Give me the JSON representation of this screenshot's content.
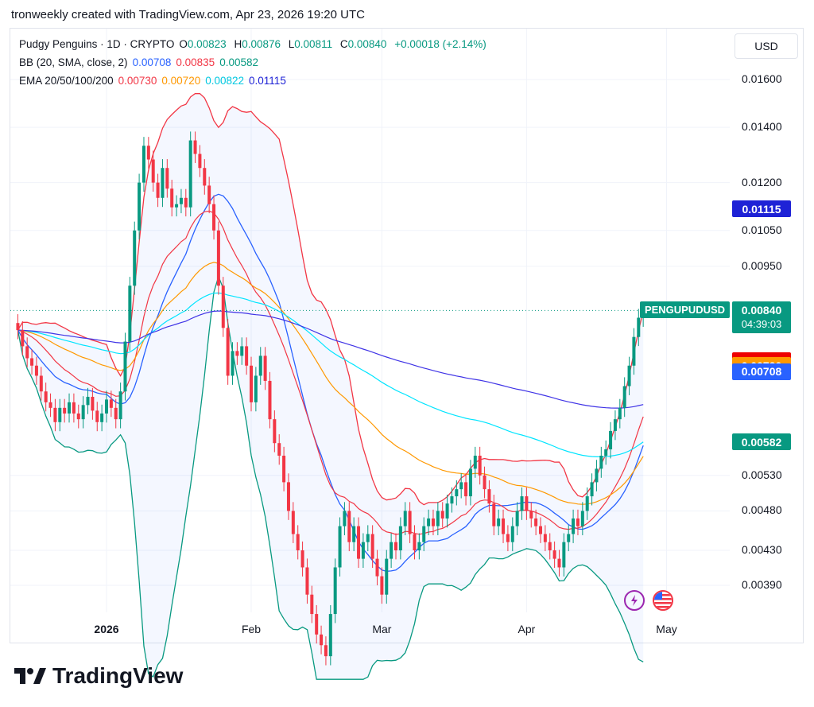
{
  "header": {
    "text": "tronweekly created with TradingView.com, Apr 23, 2026 19:20 UTC"
  },
  "legend": {
    "symbol": "Pudgy Penguins · 1D · CRYPTO",
    "o_label": "O",
    "o": "0.00823",
    "h_label": "H",
    "h": "0.00876",
    "l_label": "L",
    "l": "0.00811",
    "c_label": "C",
    "c": "0.00840",
    "change": "+0.00018 (+2.14%)",
    "bb_label": "BB (20, SMA, close, 2)",
    "bb_basis": "0.00708",
    "bb_upper": "0.00835",
    "bb_lower": "0.00582",
    "ema_label": "EMA 20/50/100/200",
    "ema20": "0.00730",
    "ema50": "0.00720",
    "ema100": "0.00822",
    "ema200": "0.01115"
  },
  "currency": "USD",
  "price_badge": {
    "symbol": "PENGUPUDUSD",
    "price": "0.00840",
    "countdown": "04:39:03"
  },
  "brand": "TradingView",
  "colors": {
    "up": "#089981",
    "down": "#f23645",
    "bb_upper": "#f23645",
    "bb_basis": "#2962ff",
    "bb_lower": "#089981",
    "ema20": "#f23645",
    "ema50": "#ff9800",
    "ema100": "#00e5ff",
    "ema200": "#3f33e6"
  },
  "chart_data": {
    "type": "candlestick",
    "title": "Pudgy Penguins · 1D · CRYPTO",
    "y_scale": "log",
    "y_ticks": [
      "0.01600",
      "0.01400",
      "0.01200",
      "0.01050",
      "0.00950",
      "0.00530",
      "0.00480",
      "0.00430",
      "0.00390"
    ],
    "x_ticks": [
      "2026",
      "Feb",
      "Mar",
      "Apr",
      "May"
    ],
    "last_values": [
      {
        "name": "EMA 200",
        "value": "0.01115",
        "color": "#1e22d6"
      },
      {
        "name": "BB upper",
        "value": "0.00835",
        "color": "#f23645"
      },
      {
        "name": "EMA 100",
        "value": "0.00822",
        "color": "#00e5ff"
      },
      {
        "name": "EMA 20",
        "value": "0.00730",
        "color": "#ee0000"
      },
      {
        "name": "EMA 50",
        "value": "0.00720",
        "color": "#ff9800"
      },
      {
        "name": "BB basis",
        "value": "0.00708",
        "color": "#2962ff"
      },
      {
        "name": "BB lower",
        "value": "0.00582",
        "color": "#089981"
      }
    ],
    "grid": true,
    "ohlc": {
      "start": "2025-12-13",
      "closes": [
        0.00795,
        0.0076,
        0.00735,
        0.0072,
        0.007,
        0.0067,
        0.0065,
        0.0064,
        0.00615,
        0.0064,
        0.0063,
        0.0065,
        0.0063,
        0.0062,
        0.00645,
        0.0066,
        0.00635,
        0.00615,
        0.0063,
        0.00655,
        0.0064,
        0.0062,
        0.0067,
        0.0077,
        0.009,
        0.0105,
        0.012,
        0.0133,
        0.0128,
        0.012,
        0.0115,
        0.0125,
        0.0118,
        0.0112,
        0.0113,
        0.0115,
        0.0112,
        0.0135,
        0.013,
        0.0125,
        0.0119,
        0.0113,
        0.0105,
        0.009,
        0.008,
        0.007,
        0.0075,
        0.0074,
        0.0076,
        0.0072,
        0.0065,
        0.007,
        0.0074,
        0.0069,
        0.0062,
        0.0058,
        0.0056,
        0.0052,
        0.0048,
        0.0045,
        0.0043,
        0.0041,
        0.0038,
        0.0036,
        0.0034,
        0.0033,
        0.0032,
        0.0036,
        0.0041,
        0.0046,
        0.0048,
        0.0044,
        0.0046,
        0.0042,
        0.0044,
        0.0045,
        0.0042,
        0.004,
        0.0038,
        0.0042,
        0.0044,
        0.0043,
        0.0046,
        0.0048,
        0.0045,
        0.0043,
        0.0044,
        0.0046,
        0.0047,
        0.0046,
        0.0048,
        0.0047,
        0.0049,
        0.005,
        0.0051,
        0.0052,
        0.005,
        0.0054,
        0.0056,
        0.0053,
        0.0051,
        0.0049,
        0.0046,
        0.0047,
        0.0045,
        0.0044,
        0.0046,
        0.0048,
        0.005,
        0.0048,
        0.0047,
        0.0046,
        0.0045,
        0.0044,
        0.0043,
        0.0042,
        0.0041,
        0.0044,
        0.0045,
        0.0047,
        0.0046,
        0.0048,
        0.005,
        0.0052,
        0.0054,
        0.0056,
        0.0057,
        0.006,
        0.0062,
        0.0064,
        0.0068,
        0.0072,
        0.0078,
        0.00823,
        0.0084
      ]
    }
  }
}
